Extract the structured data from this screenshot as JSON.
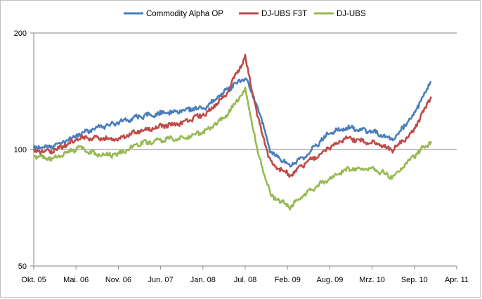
{
  "chart_data": {
    "type": "line",
    "title": "",
    "xlabel": "",
    "ylabel": "",
    "y_scale": "log",
    "ylim": [
      50,
      200
    ],
    "y_ticks": [
      50,
      100,
      200
    ],
    "y_tick_labels": [
      "50",
      "100",
      "200"
    ],
    "gridlines": "horizontal at 100 and 200",
    "legend_position": "top",
    "x_ticks": [
      "Okt. 05",
      "Mai. 06",
      "Nov. 06",
      "Jun. 07",
      "Jan. 08",
      "Jul. 08",
      "Feb. 09",
      "Aug. 09",
      "Mrz. 10",
      "Sep. 10",
      "Apr. 11"
    ],
    "x": [
      "Okt. 05",
      "Jan. 06",
      "Mai. 06",
      "Aug. 06",
      "Nov. 06",
      "Feb. 07",
      "Jun. 07",
      "Sep. 07",
      "Jan. 08",
      "Apr. 08",
      "Jul. 08",
      "Sep. 08",
      "Nov. 08",
      "Feb. 09",
      "Apr. 09",
      "Aug. 09",
      "Nov. 09",
      "Mrz. 10",
      "Jun. 10",
      "Sep. 10",
      "Dez. 10"
    ],
    "series": [
      {
        "name": "Commodity Alpha OP",
        "color": "#4a7ebb",
        "values": [
          101,
          102,
          109,
          114,
          117,
          121,
          124,
          126,
          129,
          142,
          154,
          128,
          98,
          91,
          95,
          110,
          114,
          111,
          106,
          121,
          150
        ]
      },
      {
        "name": "DJ-UBS F3T",
        "color": "#be4b48",
        "values": [
          99,
          99,
          107,
          107,
          106,
          111,
          115,
          117,
          124,
          139,
          173,
          120,
          92,
          86,
          91,
          101,
          107,
          104,
          100,
          110,
          137
        ]
      },
      {
        "name": "DJ-UBS",
        "color": "#98b954",
        "values": [
          96,
          95,
          101,
          97,
          97,
          103,
          106,
          107,
          112,
          122,
          143,
          98,
          76,
          71,
          76,
          84,
          89,
          89,
          85,
          95,
          105
        ]
      }
    ]
  }
}
